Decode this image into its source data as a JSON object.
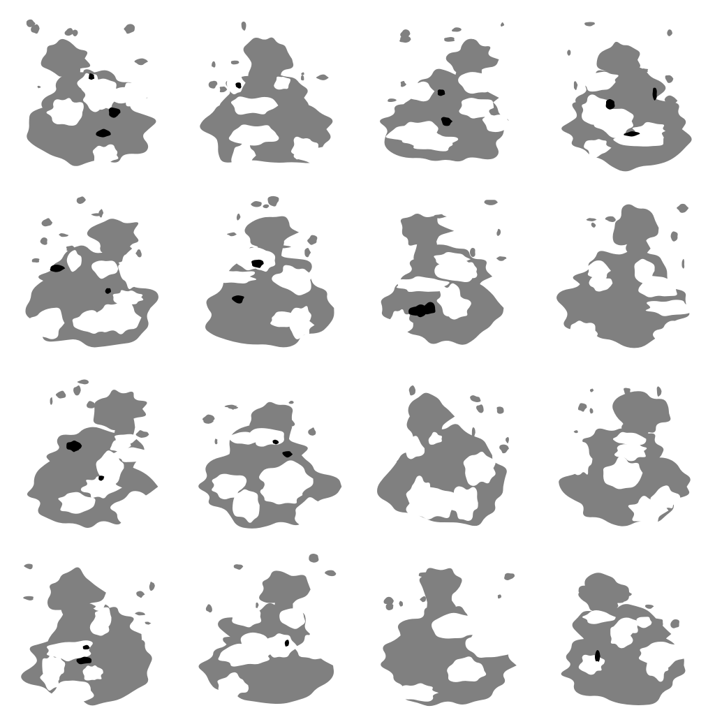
{
  "image": {
    "description_type": "grid of procedurally generated blob maps",
    "rows": 4,
    "columns": 4,
    "palette": {
      "background": "#ffffff",
      "land": "#808080",
      "peak": "#000000"
    },
    "tiles": [
      {
        "row": 0,
        "col": 0,
        "seed": 11,
        "has_peaks": true
      },
      {
        "row": 0,
        "col": 1,
        "seed": 27,
        "has_peaks": true
      },
      {
        "row": 0,
        "col": 2,
        "seed": 43,
        "has_peaks": true
      },
      {
        "row": 0,
        "col": 3,
        "seed": 59,
        "has_peaks": true
      },
      {
        "row": 1,
        "col": 0,
        "seed": 71,
        "has_peaks": true
      },
      {
        "row": 1,
        "col": 1,
        "seed": 83,
        "has_peaks": true
      },
      {
        "row": 1,
        "col": 2,
        "seed": 97,
        "has_peaks": true
      },
      {
        "row": 1,
        "col": 3,
        "seed": 109,
        "has_peaks": false
      },
      {
        "row": 2,
        "col": 0,
        "seed": 127,
        "has_peaks": true
      },
      {
        "row": 2,
        "col": 1,
        "seed": 139,
        "has_peaks": true
      },
      {
        "row": 2,
        "col": 2,
        "seed": 151,
        "has_peaks": false
      },
      {
        "row": 2,
        "col": 3,
        "seed": 163,
        "has_peaks": false
      },
      {
        "row": 3,
        "col": 0,
        "seed": 179,
        "has_peaks": true
      },
      {
        "row": 3,
        "col": 1,
        "seed": 191,
        "has_peaks": true
      },
      {
        "row": 3,
        "col": 2,
        "seed": 203,
        "has_peaks": false
      },
      {
        "row": 3,
        "col": 3,
        "seed": 211,
        "has_peaks": true
      }
    ]
  }
}
